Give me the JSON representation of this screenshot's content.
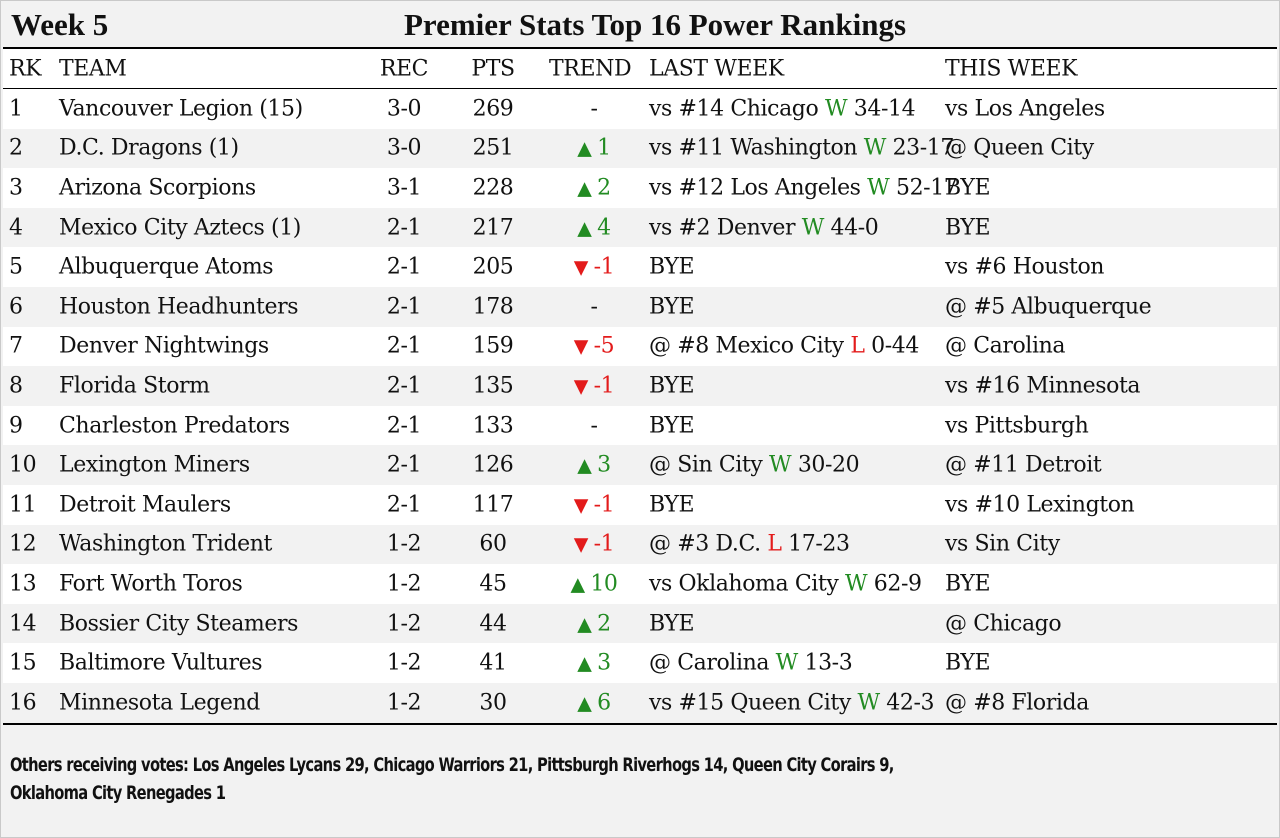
{
  "header": {
    "week": "Week 5",
    "title": "Premier Stats Top 16 Power Rankings"
  },
  "columns": {
    "rk": "RK",
    "team": "TEAM",
    "rec": "REC",
    "pts": "PTS",
    "trend": "TREND",
    "last": "LAST WEEK",
    "this": "THIS WEEK"
  },
  "colors": {
    "up": "#228b22",
    "down": "#e31b1b",
    "win": "#228b22",
    "loss": "#e31b1b"
  },
  "rows": [
    {
      "rk": "1",
      "team": "Vancouver Legion (15)",
      "rec": "3-0",
      "pts": "269",
      "trend_dir": "none",
      "trend": "-",
      "last_pre": "vs #14 Chicago",
      "last_res": "W",
      "last_score": "34-14",
      "this": "vs Los Angeles"
    },
    {
      "rk": "2",
      "team": "D.C. Dragons (1)",
      "rec": "3-0",
      "pts": "251",
      "trend_dir": "up",
      "trend": "1",
      "last_pre": "vs #11 Washington",
      "last_res": "W",
      "last_score": "23-17",
      "this": "@ Queen City"
    },
    {
      "rk": "3",
      "team": "Arizona Scorpions",
      "rec": "3-1",
      "pts": "228",
      "trend_dir": "up",
      "trend": "2",
      "last_pre": "vs #12 Los Angeles",
      "last_res": "W",
      "last_score": "52-17",
      "this": "BYE"
    },
    {
      "rk": "4",
      "team": "Mexico City Aztecs (1)",
      "rec": "2-1",
      "pts": "217",
      "trend_dir": "up",
      "trend": "4",
      "last_pre": "vs #2 Denver",
      "last_res": "W",
      "last_score": "44-0",
      "this": "BYE"
    },
    {
      "rk": "5",
      "team": "Albuquerque Atoms",
      "rec": "2-1",
      "pts": "205",
      "trend_dir": "down",
      "trend": "-1",
      "last_pre": "BYE",
      "last_res": "",
      "last_score": "",
      "this": "vs #6 Houston"
    },
    {
      "rk": "6",
      "team": "Houston Headhunters",
      "rec": "2-1",
      "pts": "178",
      "trend_dir": "none",
      "trend": "-",
      "last_pre": "BYE",
      "last_res": "",
      "last_score": "",
      "this": "@ #5 Albuquerque"
    },
    {
      "rk": "7",
      "team": "Denver Nightwings",
      "rec": "2-1",
      "pts": "159",
      "trend_dir": "down",
      "trend": "-5",
      "last_pre": "@ #8 Mexico City",
      "last_res": "L",
      "last_score": "0-44",
      "this": "@ Carolina"
    },
    {
      "rk": "8",
      "team": "Florida Storm",
      "rec": "2-1",
      "pts": "135",
      "trend_dir": "down",
      "trend": "-1",
      "last_pre": "BYE",
      "last_res": "",
      "last_score": "",
      "this": "vs #16 Minnesota"
    },
    {
      "rk": "9",
      "team": "Charleston Predators",
      "rec": "2-1",
      "pts": "133",
      "trend_dir": "none",
      "trend": "-",
      "last_pre": "BYE",
      "last_res": "",
      "last_score": "",
      "this": "vs Pittsburgh"
    },
    {
      "rk": "10",
      "team": "Lexington Miners",
      "rec": "2-1",
      "pts": "126",
      "trend_dir": "up",
      "trend": "3",
      "last_pre": "@ Sin City",
      "last_res": "W",
      "last_score": "30-20",
      "this": "@ #11 Detroit"
    },
    {
      "rk": "11",
      "team": "Detroit Maulers",
      "rec": "2-1",
      "pts": "117",
      "trend_dir": "down",
      "trend": "-1",
      "last_pre": "BYE",
      "last_res": "",
      "last_score": "",
      "this": "vs #10 Lexington"
    },
    {
      "rk": "12",
      "team": "Washington Trident",
      "rec": "1-2",
      "pts": "60",
      "trend_dir": "down",
      "trend": "-1",
      "last_pre": "@ #3 D.C.",
      "last_res": "L",
      "last_score": "17-23",
      "this": "vs Sin City"
    },
    {
      "rk": "13",
      "team": "Fort Worth Toros",
      "rec": "1-2",
      "pts": "45",
      "trend_dir": "up",
      "trend": "10",
      "last_pre": "vs Oklahoma City",
      "last_res": "W",
      "last_score": "62-9",
      "this": "BYE"
    },
    {
      "rk": "14",
      "team": "Bossier City Steamers",
      "rec": "1-2",
      "pts": "44",
      "trend_dir": "up",
      "trend": "2",
      "last_pre": "BYE",
      "last_res": "",
      "last_score": "",
      "this": "@ Chicago"
    },
    {
      "rk": "15",
      "team": "Baltimore Vultures",
      "rec": "1-2",
      "pts": "41",
      "trend_dir": "up",
      "trend": "3",
      "last_pre": "@ Carolina",
      "last_res": "W",
      "last_score": "13-3",
      "this": "BYE"
    },
    {
      "rk": "16",
      "team": "Minnesota Legend",
      "rec": "1-2",
      "pts": "30",
      "trend_dir": "up",
      "trend": "6",
      "last_pre": "vs #15 Queen City",
      "last_res": "W",
      "last_score": "42-3",
      "this": "@ #8 Florida"
    }
  ],
  "footer": {
    "others_line1": "Others receiving votes: Los Angeles Lycans 29, Chicago Warriors 21, Pittsburgh Riverhogs 14, Queen City Corairs 9,",
    "others_line2": "Oklahoma City Renegades 1"
  }
}
